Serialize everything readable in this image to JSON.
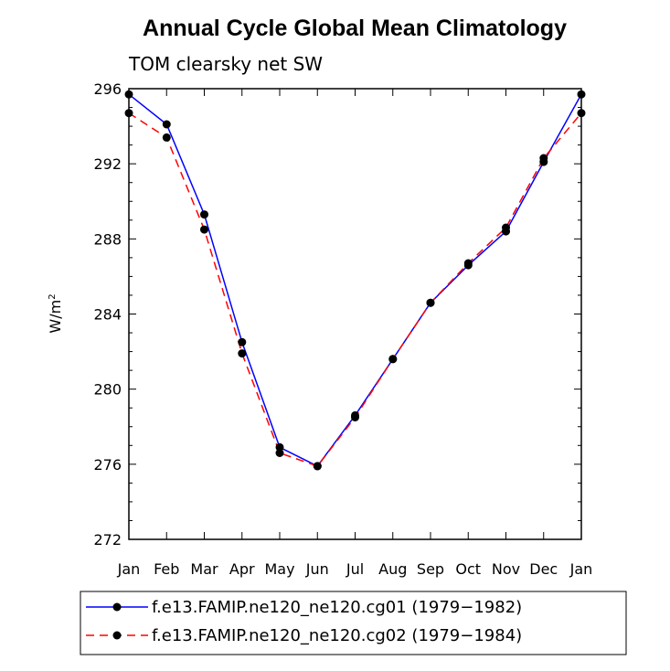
{
  "chart_data": {
    "type": "line",
    "title": "Annual Cycle Global Mean Climatology",
    "subtitle": "TOM clearsky net SW",
    "ylabel": "W/m",
    "ylabel_sup": "2",
    "xlabel": "",
    "categories": [
      "Jan",
      "Feb",
      "Mar",
      "Apr",
      "May",
      "Jun",
      "Jul",
      "Aug",
      "Sep",
      "Oct",
      "Nov",
      "Dec",
      "Jan"
    ],
    "ylim": [
      272,
      296
    ],
    "yticks": [
      "272",
      "276",
      "280",
      "284",
      "288",
      "292",
      "296"
    ],
    "series": [
      {
        "name": "f.e13.FAMIP.ne120_ne120.cg01 (1979-1982)",
        "color": "#0000ff",
        "dash": "solid",
        "values": [
          295.7,
          294.1,
          289.3,
          282.5,
          276.9,
          275.9,
          278.6,
          281.6,
          284.6,
          286.6,
          288.4,
          292.1,
          295.7
        ]
      },
      {
        "name": "f.e13.FAMIP.ne120_ne120.cg02 (1979-1984)",
        "color": "#ff0000",
        "dash": "dashed",
        "values": [
          294.7,
          293.4,
          288.5,
          281.9,
          276.6,
          275.9,
          278.5,
          281.6,
          284.6,
          286.7,
          288.6,
          292.3,
          294.7
        ]
      }
    ],
    "legend": {
      "position": "bottom",
      "entries": [
        "f.e13.FAMIP.ne120_ne120.cg01 (1979−1982)",
        "f.e13.FAMIP.ne120_ne120.cg02 (1979−1984)"
      ]
    }
  }
}
